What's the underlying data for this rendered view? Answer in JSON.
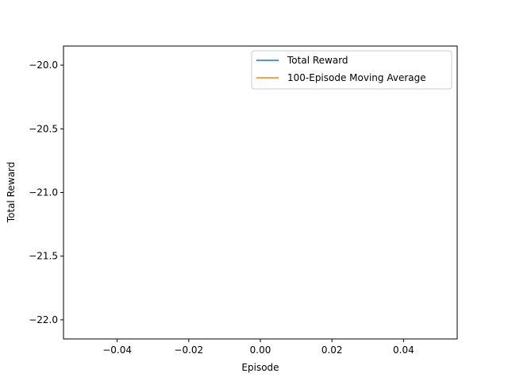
{
  "chart_data": {
    "type": "line",
    "title": "",
    "xlabel": "Episode",
    "ylabel": "Total Reward",
    "xlim": [
      -0.055,
      0.055
    ],
    "ylim": [
      -22.15,
      -19.85
    ],
    "x_ticks": [
      -0.04,
      -0.02,
      0.0,
      0.02,
      0.04
    ],
    "x_tick_labels": [
      "−0.04",
      "−0.02",
      "0.00",
      "0.02",
      "0.04"
    ],
    "y_ticks": [
      -20.0,
      -20.5,
      -21.0,
      -21.5,
      -22.0
    ],
    "y_tick_labels": [
      "−20.0",
      "−20.5",
      "−21.0",
      "−21.5",
      "−22.0"
    ],
    "grid": false,
    "legend_position": "top-right",
    "series": [
      {
        "name": "Total Reward",
        "color": "#1f77b4",
        "x": [],
        "y": []
      },
      {
        "name": "100-Episode Moving Average",
        "color": "#ff7f0e",
        "x": [],
        "y": []
      }
    ]
  }
}
